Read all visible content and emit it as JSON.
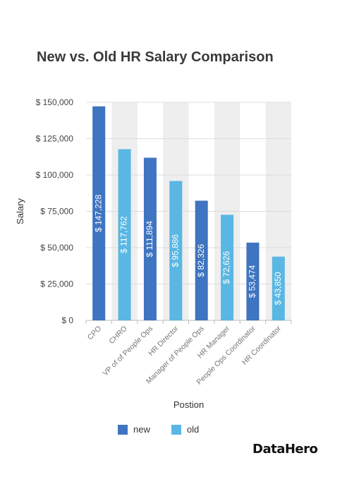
{
  "chart_data": {
    "type": "bar",
    "title": "New vs. Old HR Salary Comparison",
    "xlabel": "Postion",
    "ylabel": "Salary",
    "categories": [
      "CPO",
      "CHRO",
      "VP of of People Ops",
      "HR Director",
      "Manager of People Ops",
      "HR Manager",
      "People Ops Coordinator",
      "HR Coordinator"
    ],
    "values": [
      147228,
      117762,
      111894,
      95886,
      82326,
      72626,
      53474,
      43850
    ],
    "bar_series": [
      "new",
      "old",
      "new",
      "old",
      "new",
      "old",
      "new",
      "old"
    ],
    "data_labels": [
      "$ 147,228",
      "$ 117,762",
      "$ 111,894",
      "$ 95,886",
      "$ 82,326",
      "$ 72,626",
      "$ 53,474",
      "$ 43,850"
    ],
    "series": [
      {
        "name": "new",
        "color": "#3e74c0"
      },
      {
        "name": "old",
        "color": "#5ab7e3"
      }
    ],
    "ylim": [
      0,
      150000
    ],
    "yticks": [
      0,
      25000,
      50000,
      75000,
      100000,
      125000,
      150000
    ],
    "ytick_labels": [
      "$ 0",
      "$ 25,000",
      "$ 50,000",
      "$ 75,000",
      "$ 100,000",
      "$ 125,000",
      "$ 150,000"
    ],
    "grid": true,
    "legend_position": "bottom",
    "alternate_band_color": "#eeeeee"
  },
  "brand": {
    "logo_text": "DataHero"
  }
}
